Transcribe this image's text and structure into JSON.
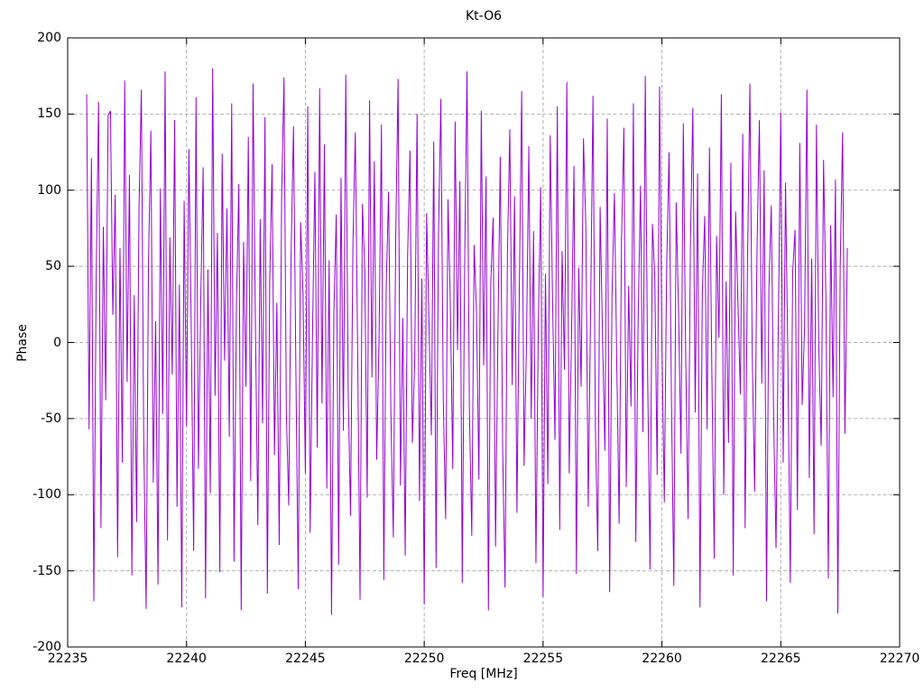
{
  "chart_data": {
    "type": "line",
    "title": "Kt-O6",
    "xlabel": "Freq [MHz]",
    "ylabel": "Phase",
    "xlim": [
      22235,
      22270
    ],
    "ylim": [
      -200,
      200
    ],
    "x_ticks": [
      22235,
      22240,
      22245,
      22250,
      22255,
      22260,
      22265,
      22270
    ],
    "y_ticks": [
      -200,
      -150,
      -100,
      -50,
      0,
      50,
      100,
      150,
      200
    ],
    "grid": true,
    "legend_position": "none",
    "line_color": "#9400d3",
    "grid_color": "#b0b0b0",
    "border_color": "#000000",
    "background_color": "#ffffff",
    "series": [
      {
        "name": "phase",
        "x_start": 22235.8,
        "x_step": 0.1,
        "values": [
          163,
          -57,
          121,
          -170,
          44,
          158,
          -122,
          76,
          -38,
          149,
          152,
          18,
          97,
          -141,
          62,
          -79,
          172,
          -26,
          110,
          -153,
          31,
          -118,
          87,
          166,
          -64,
          -175,
          52,
          139,
          -92,
          14,
          -159,
          101,
          -47,
          178,
          -130,
          69,
          -21,
          146,
          -108,
          38,
          -174,
          93,
          -55,
          127,
          7,
          -137,
          161,
          -83,
          29,
          115,
          -168,
          48,
          -99,
          180,
          -35,
          72,
          -151,
          124,
          -12,
          88,
          -62,
          157,
          -144,
          23,
          104,
          -176,
          66,
          -29,
          135,
          -91,
          170,
          9,
          -120,
          81,
          -53,
          148,
          -165,
          41,
          117,
          -74,
          26,
          -133,
          95,
          174,
          -46,
          -107,
          59,
          142,
          -17,
          -162,
          79,
          33,
          -86,
          155,
          -125,
          4,
          112,
          -69,
          167,
          -40,
          130,
          -96,
          54,
          -179,
          21,
          84,
          -146,
          108,
          -58,
          176,
          -31,
          -114,
          63,
          138,
          -7,
          -169,
          91,
          47,
          -102,
          159,
          -23,
          119,
          -77,
          2,
          143,
          -156,
          36,
          99,
          -49,
          -128,
          68,
          173,
          -94,
          16,
          -140,
          56,
          126,
          -66,
          -11,
          150,
          -104,
          42,
          -172,
          85,
          13,
          -61,
          132,
          -148,
          71,
          160,
          -36,
          -116,
          94,
          24,
          -83,
          145,
          -5,
          106,
          -158,
          51,
          178,
          -44,
          -127,
          64,
          19,
          -90,
          152,
          -15,
          109,
          -176,
          39,
          82,
          -134,
          6,
          122,
          -70,
          -161,
          58,
          140,
          -28,
          96,
          -112,
          34,
          165,
          -81,
          -2,
          129,
          -50,
          73,
          -145,
          11,
          102,
          -167,
          45,
          -93,
          136,
          27,
          -64,
          155,
          -123,
          60,
          -18,
          171,
          -86,
          8,
          116,
          -152,
          49,
          -29,
          134,
          75,
          -108,
          22,
          162,
          -55,
          -137,
          89,
          5,
          -71,
          147,
          -164,
          30,
          98,
          -13,
          -119,
          67,
          141,
          -95,
          37,
          -42,
          157,
          -131,
          15,
          103,
          -59,
          175,
          -24,
          -149,
          78,
          43,
          -87,
          168,
          0,
          -105,
          51,
          125,
          -37,
          -160,
          92,
          20,
          -73,
          144,
          -9,
          -116,
          65,
          154,
          -46,
          111,
          -174,
          33,
          83,
          -57,
          128,
          -19,
          -142,
          70,
          3,
          163,
          -100,
          40,
          -66,
          118,
          -153,
          86,
          25,
          -34,
          137,
          -122,
          53,
          170,
          -8,
          -98,
          61,
          146,
          -27,
          113,
          -170,
          35,
          90,
          -50,
          -135,
          17,
          151,
          -79,
          105,
          -14,
          -158,
          46,
          74,
          -110,
          131,
          -41,
          10,
          166,
          -89,
          55,
          -126,
          143,
          -3,
          -68,
          120,
          28,
          -155,
          77,
          -36,
          107,
          -178,
          49,
          138,
          -60,
          62
        ]
      }
    ]
  }
}
